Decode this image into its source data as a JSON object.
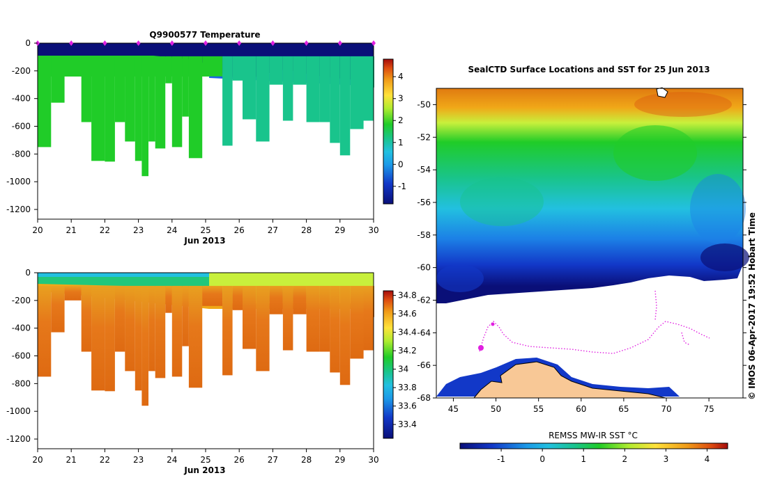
{
  "colors": {
    "navy": "#0a0f78",
    "blue": "#1c63e6",
    "cyan": "#22c0e0",
    "teal": "#19c48c",
    "green": "#20cc28",
    "lime": "#c8f03c",
    "yellow": "#ffe23a",
    "orange": "#f09a18",
    "deep_orange": "#e07a10",
    "red": "#a40c0c",
    "land": "#f8c896"
  },
  "chart_data": [
    {
      "type": "heatmap",
      "title": "Q9900577  Temperature",
      "xlabel": "Jun 2013",
      "x_ticks": [
        "20",
        "21",
        "22",
        "23",
        "24",
        "25",
        "26",
        "27",
        "28",
        "29",
        "30"
      ],
      "xlim": [
        20,
        30
      ],
      "y_ticks": [
        "0",
        "-200",
        "-400",
        "-600",
        "-800",
        "-1000",
        "-1200"
      ],
      "ylim": [
        -1270,
        0
      ],
      "colorbar_ticks": [
        "4",
        "3",
        "2",
        "1",
        "0",
        "-1"
      ],
      "colorbar_range": [
        -1.8,
        4.8
      ],
      "profile_markers_day": [
        20.0,
        21.0,
        22.0,
        23.0,
        24.0,
        25.0,
        26.0,
        27.0,
        28.0,
        29.0,
        30.0
      ],
      "profiles": [
        {
          "t": 20.0,
          "d": 750
        },
        {
          "t": 20.4,
          "d": 430
        },
        {
          "t": 20.8,
          "d": 200
        },
        {
          "t": 21.3,
          "d": 570
        },
        {
          "t": 21.6,
          "d": 850
        },
        {
          "t": 22.0,
          "d": 855
        },
        {
          "t": 22.3,
          "d": 570
        },
        {
          "t": 22.6,
          "d": 710
        },
        {
          "t": 22.9,
          "d": 850
        },
        {
          "t": 23.1,
          "d": 960
        },
        {
          "t": 23.3,
          "d": 710
        },
        {
          "t": 23.5,
          "d": 760
        },
        {
          "t": 23.8,
          "d": 290
        },
        {
          "t": 24.0,
          "d": 750
        },
        {
          "t": 24.3,
          "d": 530
        },
        {
          "t": 24.5,
          "d": 830
        },
        {
          "t": 24.9,
          "d": 240
        },
        {
          "t": 25.5,
          "d": 740
        },
        {
          "t": 25.8,
          "d": 270
        },
        {
          "t": 26.1,
          "d": 550
        },
        {
          "t": 26.5,
          "d": 710
        },
        {
          "t": 26.9,
          "d": 300
        },
        {
          "t": 27.3,
          "d": 560
        },
        {
          "t": 27.6,
          "d": 300
        },
        {
          "t": 28.0,
          "d": 570
        },
        {
          "t": 28.4,
          "d": 570
        },
        {
          "t": 28.7,
          "d": 720
        },
        {
          "t": 29.0,
          "d": 810
        },
        {
          "t": 29.3,
          "d": 620
        },
        {
          "t": 29.7,
          "d": 560
        },
        {
          "t": 30.0,
          "d": 320
        }
      ]
    },
    {
      "type": "heatmap",
      "title": "",
      "xlabel": "Jun 2013",
      "x_ticks": [
        "20",
        "21",
        "22",
        "23",
        "24",
        "25",
        "26",
        "27",
        "28",
        "29",
        "30"
      ],
      "xlim": [
        20,
        30
      ],
      "y_ticks": [
        "0",
        "-200",
        "-400",
        "-600",
        "-800",
        "-1000",
        "-1200"
      ],
      "ylim": [
        -1270,
        0
      ],
      "colorbar_ticks": [
        "34.8",
        "34.6",
        "34.4",
        "34.2",
        "34",
        "33.8",
        "33.6",
        "33.4"
      ],
      "colorbar_range": [
        33.25,
        34.85
      ]
    },
    {
      "type": "heatmap",
      "title": "SealCTD Surface Locations and SST for 25 Jun 2013",
      "x_ticks": [
        "45",
        "50",
        "55",
        "60",
        "65",
        "70",
        "75"
      ],
      "xlim": [
        43,
        79
      ],
      "y_ticks": [
        "-50",
        "-52",
        "-54",
        "-56",
        "-58",
        "-60",
        "-62",
        "-64",
        "-66",
        "-68"
      ],
      "ylim": [
        -68,
        -49
      ],
      "colorbar_label": "REMSS MW-IR SST °C",
      "colorbar_ticks": [
        "-1",
        "0",
        "1",
        "2",
        "3",
        "4"
      ],
      "colorbar_range": [
        -2.0,
        4.5
      ],
      "credit": "© IMOS 06-Apr-2017 19:52 Hobart Time"
    }
  ]
}
